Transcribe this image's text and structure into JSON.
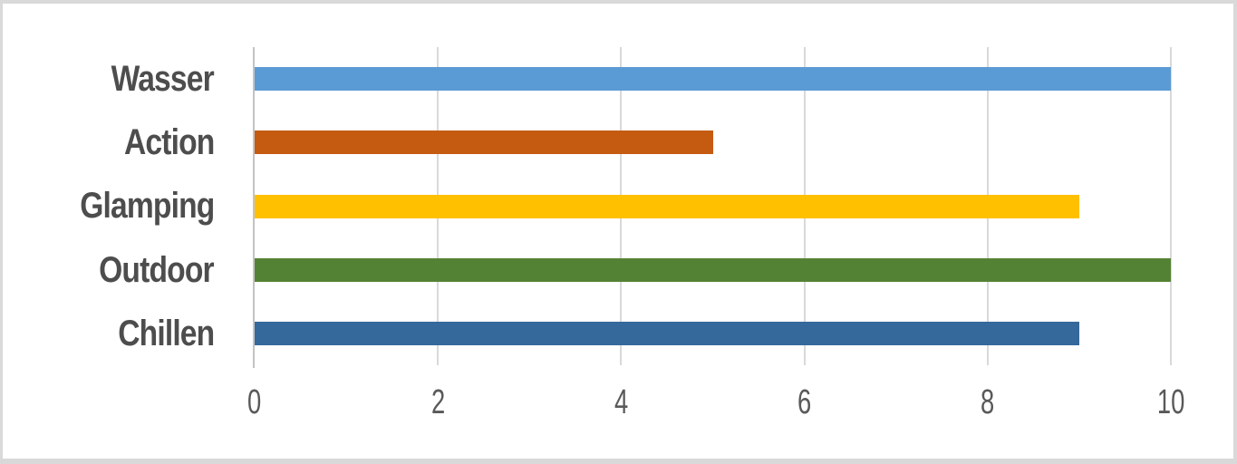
{
  "chart_data": {
    "type": "bar",
    "orientation": "horizontal",
    "title": "",
    "xlabel": "",
    "ylabel": "",
    "categories": [
      "Wasser",
      "Action",
      "Glamping",
      "Outdoor",
      "Chillen"
    ],
    "values": [
      10,
      5,
      9,
      10,
      9
    ],
    "bar_colors": [
      "#5B9BD5",
      "#C55A11",
      "#FFC000",
      "#548235",
      "#35689B"
    ],
    "xlim": [
      0,
      10
    ],
    "xticks": [
      0,
      2,
      4,
      6,
      8,
      10
    ],
    "grid": true,
    "legend": "none"
  },
  "styles": {
    "gridline_color": "#d9d9d9",
    "axis_line_color": "#c3c3c3",
    "category_label_color": "#4d4d4d",
    "tick_label_color": "#595959",
    "frame_color": "#d9d9d9",
    "background": "#ffffff"
  }
}
